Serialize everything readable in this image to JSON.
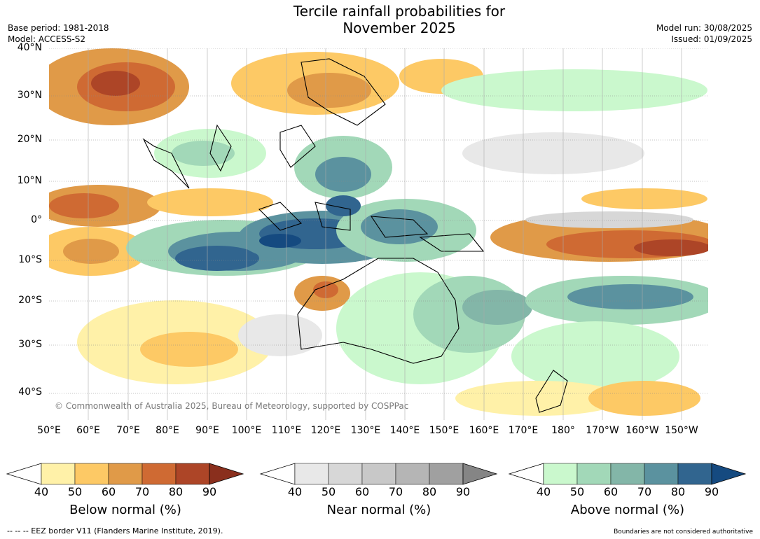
{
  "title_line1": "Tercile rainfall probabilities for",
  "title_line2": "November 2025",
  "base_period": "Base period: 1981-2018",
  "model": "Model: ACCESS-S2",
  "model_run": "Model run: 30/08/2025",
  "issued": "Issued: 01/09/2025",
  "copyright": "© Commonwealth of Australia 2025, Bureau of Meteorology, supported by COSPPac",
  "lat_labels": [
    "40°N",
    "30°N",
    "20°N",
    "10°N",
    "0°",
    "10°S",
    "20°S",
    "30°S",
    "40°S"
  ],
  "lon_labels": [
    "50°E",
    "60°E",
    "70°E",
    "80°E",
    "90°E",
    "100°E",
    "110°E",
    "120°E",
    "130°E",
    "140°E",
    "150°E",
    "160°E",
    "170°E",
    "180°",
    "170°W",
    "160°W",
    "150°W"
  ],
  "colorbars": [
    {
      "label": "Below normal (%)",
      "ticks": [
        "40",
        "50",
        "60",
        "70",
        "80",
        "90"
      ],
      "colors": [
        "#fff1a8",
        "#fdc965",
        "#e09a48",
        "#cf6a33",
        "#ad4527",
        "#8a2f1d"
      ]
    },
    {
      "label": "Near normal (%)",
      "ticks": [
        "40",
        "50",
        "60",
        "70",
        "80",
        "90"
      ],
      "colors": [
        "#e8e8e8",
        "#d7d7d7",
        "#c8c8c8",
        "#b5b5b5",
        "#a0a0a0",
        "#858585"
      ]
    },
    {
      "label": "Above normal (%)",
      "ticks": [
        "40",
        "50",
        "60",
        "70",
        "80",
        "90"
      ],
      "colors": [
        "#caf8cd",
        "#a2d8b8",
        "#83b6a8",
        "#5b929f",
        "#31658f",
        "#154a80"
      ]
    }
  ],
  "footer_left": "--  --  -- EEZ border V11 (Flanders Marine Institute, 2019).",
  "footer_right": "Boundaries are not considered authoritative"
}
